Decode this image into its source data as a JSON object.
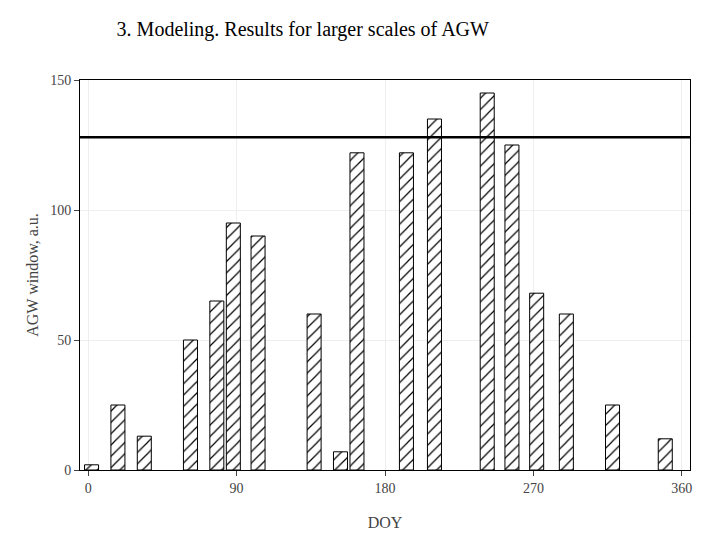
{
  "chart_data": {
    "type": "bar",
    "title": "3. Modeling. Results for larger scales of AGW",
    "xlabel": "DOY",
    "ylabel": "AGW window, a.u.",
    "x": [
      2,
      18,
      34,
      62,
      78,
      88,
      103,
      137,
      153,
      163,
      193,
      210,
      242,
      257,
      272,
      290,
      318,
      350
    ],
    "values": [
      2,
      25,
      13,
      50,
      65,
      95,
      90,
      60,
      7,
      122,
      122,
      135,
      145,
      125,
      68,
      60,
      25,
      12
    ],
    "color": "white",
    "hline": 128,
    "xlim": [
      -5,
      365
    ],
    "xticks": [
      0,
      90,
      180,
      270,
      360
    ],
    "ylim": [
      0,
      150
    ],
    "yticks": [
      0,
      50,
      100,
      150
    ],
    "grid": true
  }
}
